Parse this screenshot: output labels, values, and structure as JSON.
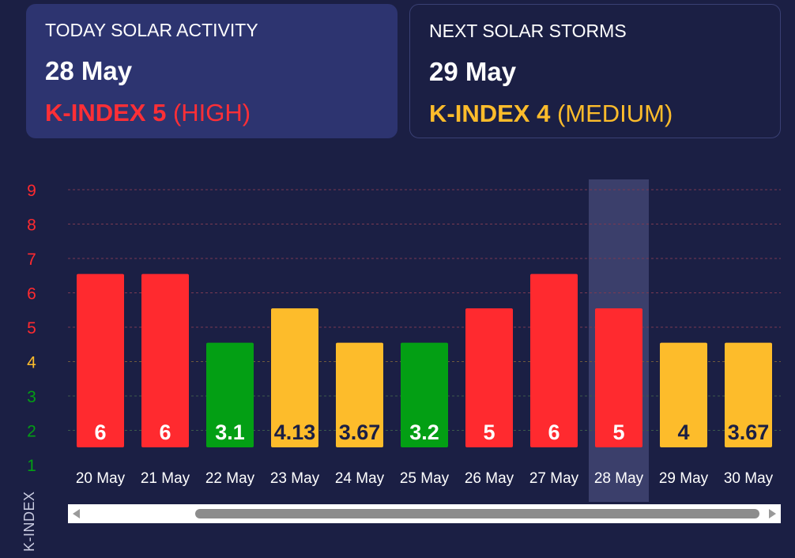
{
  "today_card": {
    "label": "TODAY SOLAR ACTIVITY",
    "date": "28 May",
    "kindex_label": "K-INDEX 5",
    "level": "(HIGH)"
  },
  "next_card": {
    "label": "NEXT SOLAR STORMS",
    "date": "29 May",
    "kindex_label": "K-INDEX 4",
    "level": "(MEDIUM)"
  },
  "colors": {
    "high": "#ff2a2f",
    "medium": "#fdbc2b",
    "low": "#039f14",
    "highlight": "#3b3f6b"
  },
  "chart_data": {
    "type": "bar",
    "categories": [
      "20 May",
      "21 May",
      "22 May",
      "23 May",
      "24 May",
      "25 May",
      "26 May",
      "27 May",
      "28 May",
      "29 May",
      "30 May"
    ],
    "values": [
      6,
      6,
      3.1,
      4.13,
      3.67,
      3.2,
      5,
      6,
      5,
      4,
      3.67
    ],
    "bar_labels": [
      "6",
      "6",
      "3.1",
      "4.13",
      "3.67",
      "3.2",
      "5",
      "6",
      "5",
      "4",
      "3.67"
    ],
    "bar_levels": [
      "high",
      "high",
      "low",
      "medium",
      "medium",
      "low",
      "high",
      "high",
      "high",
      "medium",
      "medium"
    ],
    "yticks": [
      1,
      2,
      3,
      4,
      5,
      6,
      7,
      8,
      9
    ],
    "ylim": [
      1,
      9
    ],
    "ylabel": "K-INDEX",
    "highlighted_category": "28 May",
    "grid": true
  }
}
